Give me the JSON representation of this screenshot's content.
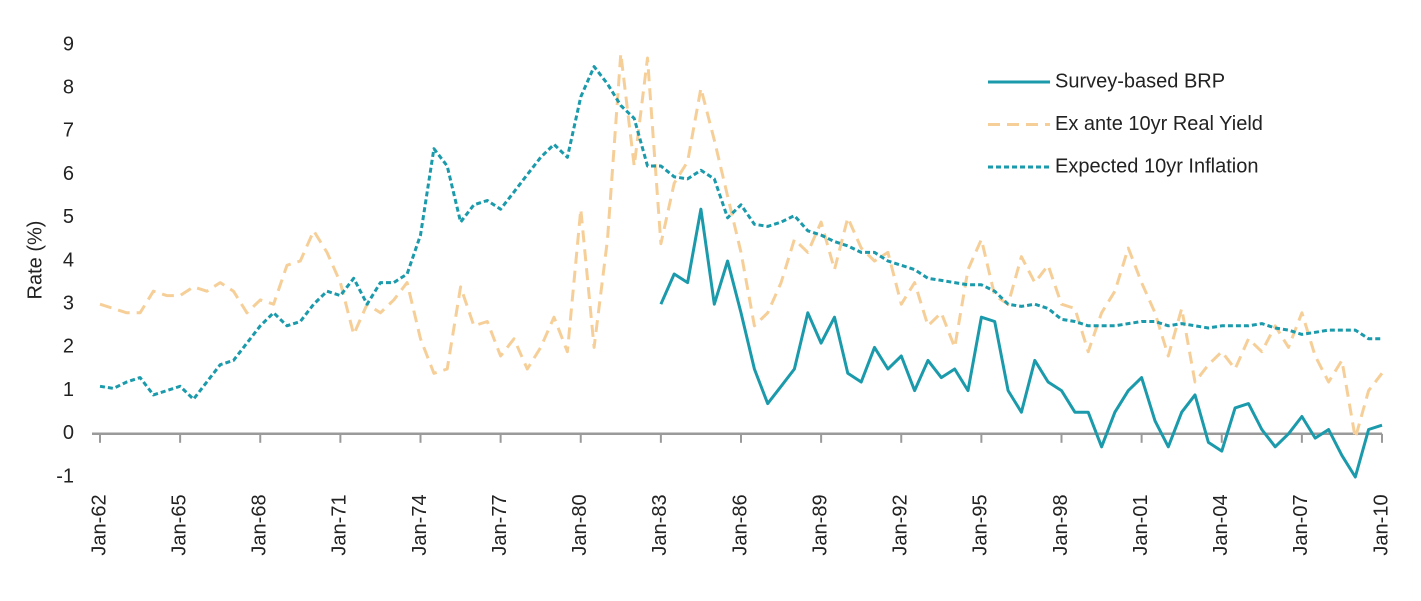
{
  "chart_data": {
    "type": "line",
    "y_label": "Rate (%)",
    "xlim": [
      1962,
      2010
    ],
    "xticks": [
      {
        "value": 1962,
        "label": "Jan-62"
      },
      {
        "value": 1965,
        "label": "Jan-65"
      },
      {
        "value": 1968,
        "label": "Jan-68"
      },
      {
        "value": 1971,
        "label": "Jan-71"
      },
      {
        "value": 1974,
        "label": "Jan-74"
      },
      {
        "value": 1977,
        "label": "Jan-77"
      },
      {
        "value": 1980,
        "label": "Jan-80"
      },
      {
        "value": 1983,
        "label": "Jan-83"
      },
      {
        "value": 1986,
        "label": "Jan-86"
      },
      {
        "value": 1989,
        "label": "Jan-89"
      },
      {
        "value": 1992,
        "label": "Jan-92"
      },
      {
        "value": 1995,
        "label": "Jan-95"
      },
      {
        "value": 1998,
        "label": "Jan-98"
      },
      {
        "value": 2001,
        "label": "Jan-01"
      },
      {
        "value": 2004,
        "label": "Jan-04"
      },
      {
        "value": 2007,
        "label": "Jan-07"
      },
      {
        "value": 2010,
        "label": "Jan-10"
      }
    ],
    "ylim": [
      -1,
      9
    ],
    "yticks": [
      -1,
      0,
      1,
      2,
      3,
      4,
      5,
      6,
      7,
      8,
      9
    ],
    "grid": false,
    "legend": "upper right",
    "x": [
      1962,
      1962.5,
      1963,
      1963.5,
      1964,
      1964.5,
      1965,
      1965.5,
      1966,
      1966.5,
      1967,
      1967.5,
      1968,
      1968.5,
      1969,
      1969.5,
      1970,
      1970.5,
      1971,
      1971.5,
      1972,
      1972.5,
      1973,
      1973.5,
      1974,
      1974.5,
      1975,
      1975.5,
      1976,
      1976.5,
      1977,
      1977.5,
      1978,
      1978.5,
      1979,
      1979.5,
      1980,
      1980.5,
      1981,
      1981.5,
      1982,
      1982.5,
      1983,
      1983.5,
      1984,
      1984.5,
      1985,
      1985.5,
      1986,
      1986.5,
      1987,
      1987.5,
      1988,
      1988.5,
      1989,
      1989.5,
      1990,
      1990.5,
      1991,
      1991.5,
      1992,
      1992.5,
      1993,
      1993.5,
      1994,
      1994.5,
      1995,
      1995.5,
      1996,
      1996.5,
      1997,
      1997.5,
      1998,
      1998.5,
      1999,
      1999.5,
      2000,
      2000.5,
      2001,
      2001.5,
      2002,
      2002.5,
      2003,
      2003.5,
      2004,
      2004.5,
      2005,
      2005.5,
      2006,
      2006.5,
      2007,
      2007.5,
      2008,
      2008.5,
      2009,
      2009.5,
      2010
    ],
    "series": [
      {
        "name": "Survey-based BRP",
        "color": "#1a9aab",
        "dash": "none",
        "values": [
          null,
          null,
          null,
          null,
          null,
          null,
          null,
          null,
          null,
          null,
          null,
          null,
          null,
          null,
          null,
          null,
          null,
          null,
          null,
          null,
          null,
          null,
          null,
          null,
          null,
          null,
          null,
          null,
          null,
          null,
          null,
          null,
          null,
          null,
          null,
          null,
          null,
          null,
          null,
          null,
          null,
          null,
          3.0,
          3.7,
          3.5,
          5.2,
          3.0,
          4.0,
          2.8,
          1.5,
          0.7,
          1.1,
          1.5,
          2.8,
          2.1,
          2.7,
          1.4,
          1.2,
          2.0,
          1.5,
          1.8,
          1.0,
          1.7,
          1.3,
          1.5,
          1.0,
          2.7,
          2.6,
          1.0,
          0.5,
          1.7,
          1.2,
          1.0,
          0.5,
          0.5,
          -0.3,
          0.5,
          1.0,
          1.3,
          0.3,
          -0.3,
          0.5,
          0.9,
          -0.2,
          -0.4,
          0.6,
          0.7,
          0.1,
          -0.3,
          0.0,
          0.4,
          -0.1,
          0.1,
          -0.5,
          -1.0,
          0.1,
          0.2
        ]
      },
      {
        "name": "Ex ante 10yr Real Yield",
        "color": "#f6cf98",
        "dash": "12,7",
        "values": [
          3.0,
          2.9,
          2.8,
          2.8,
          3.3,
          3.2,
          3.2,
          3.4,
          3.3,
          3.5,
          3.3,
          2.8,
          3.1,
          3.0,
          3.9,
          4.0,
          4.7,
          4.2,
          3.5,
          2.3,
          3.0,
          2.8,
          3.1,
          3.5,
          2.2,
          1.4,
          1.5,
          3.4,
          2.5,
          2.6,
          1.8,
          2.2,
          1.5,
          2.0,
          2.7,
          1.9,
          5.2,
          2.0,
          4.5,
          8.8,
          6.2,
          8.7,
          4.4,
          5.8,
          6.3,
          8.0,
          6.8,
          5.5,
          4.2,
          2.5,
          2.8,
          3.5,
          4.5,
          4.2,
          4.9,
          3.8,
          5.0,
          4.3,
          4.0,
          4.2,
          3.0,
          3.5,
          2.5,
          2.8,
          2.0,
          3.8,
          4.5,
          3.2,
          3.0,
          4.1,
          3.5,
          3.9,
          3.0,
          2.9,
          1.9,
          2.8,
          3.3,
          4.3,
          3.5,
          2.8,
          1.8,
          2.9,
          1.2,
          1.6,
          1.9,
          1.5,
          2.2,
          1.9,
          2.5,
          2.0,
          2.8,
          1.8,
          1.2,
          1.7,
          -0.1,
          1.0,
          1.4
        ]
      },
      {
        "name": "Expected 10yr Inflation",
        "color": "#1a9aab",
        "dash": "5,3",
        "values": [
          1.1,
          1.05,
          1.2,
          1.3,
          0.9,
          1.0,
          1.1,
          0.8,
          1.2,
          1.6,
          1.7,
          2.1,
          2.5,
          2.8,
          2.5,
          2.6,
          3.0,
          3.3,
          3.2,
          3.6,
          3.0,
          3.5,
          3.5,
          3.7,
          4.6,
          6.6,
          6.2,
          4.9,
          5.3,
          5.4,
          5.2,
          5.6,
          6.0,
          6.4,
          6.7,
          6.4,
          7.8,
          8.5,
          8.1,
          7.6,
          7.3,
          6.2,
          6.2,
          5.95,
          5.9,
          6.1,
          5.9,
          5.0,
          5.3,
          4.85,
          4.8,
          4.9,
          5.05,
          4.7,
          4.6,
          4.45,
          4.35,
          4.2,
          4.2,
          4.0,
          3.9,
          3.8,
          3.6,
          3.55,
          3.5,
          3.45,
          3.45,
          3.3,
          3.0,
          2.95,
          3.0,
          2.9,
          2.65,
          2.6,
          2.5,
          2.5,
          2.5,
          2.55,
          2.6,
          2.6,
          2.5,
          2.55,
          2.5,
          2.45,
          2.5,
          2.5,
          2.5,
          2.55,
          2.45,
          2.4,
          2.3,
          2.35,
          2.4,
          2.4,
          2.4,
          2.2,
          2.2
        ]
      }
    ]
  }
}
